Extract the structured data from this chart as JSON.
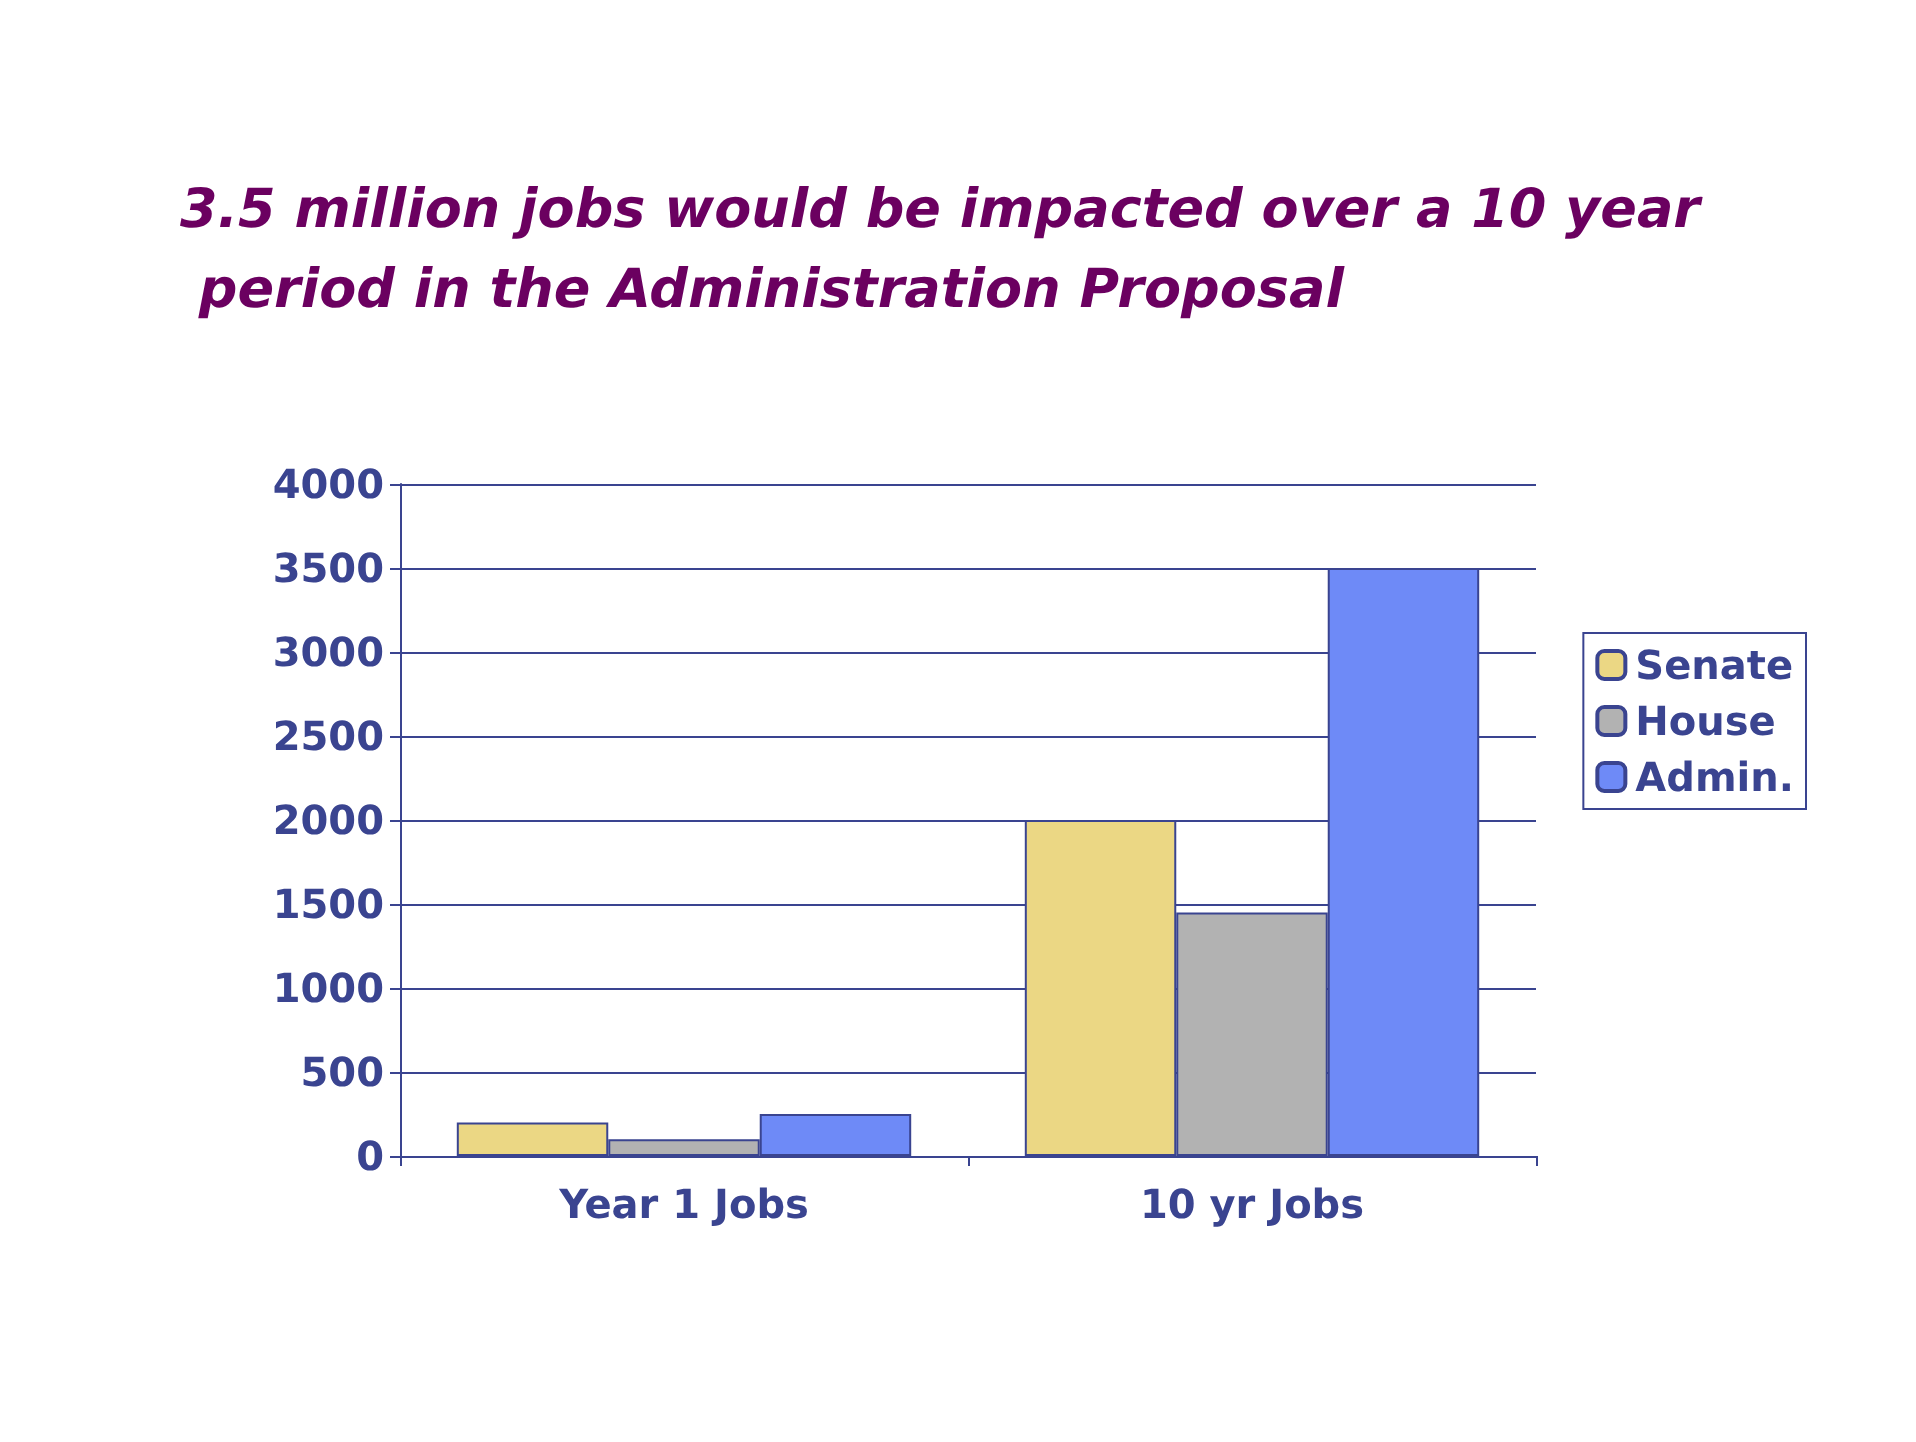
{
  "chart_data": {
    "type": "bar",
    "title": "3.5 million jobs would be impacted over a 10 year period in the Administration Proposal",
    "categories": [
      "Year 1 Jobs",
      "10 yr Jobs"
    ],
    "series": [
      {
        "name": "Senate",
        "color": "#ebd784",
        "values": [
          200,
          2000
        ]
      },
      {
        "name": "House",
        "color": "#b2b2b2",
        "values": [
          100,
          1450
        ]
      },
      {
        "name": "Admin.",
        "color": "#6e8af7",
        "values": [
          250,
          3500
        ]
      }
    ],
    "ylim": [
      0,
      4000
    ],
    "yticks": [
      0,
      500,
      1000,
      1500,
      2000,
      2500,
      3000,
      3500,
      4000
    ],
    "grid": "y",
    "legend": "right"
  }
}
